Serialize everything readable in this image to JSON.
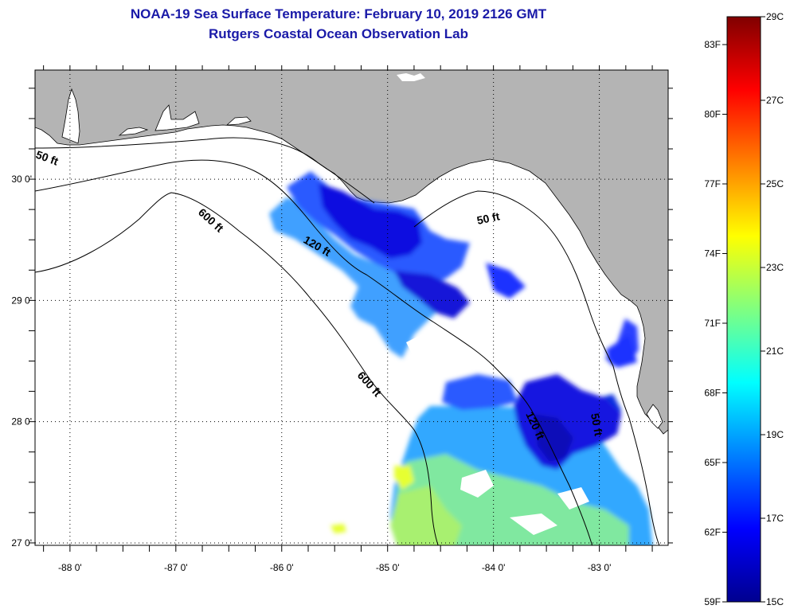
{
  "title": {
    "line1": "NOAA-19 Sea Surface Temperature:  February 10, 2019 2126 GMT",
    "line2": "Rutgers Coastal Ocean Observation Lab"
  },
  "map": {
    "lon_range": [
      -88.33,
      -82.35
    ],
    "lat_range": [
      26.98,
      30.9
    ],
    "lon_ticks": [
      {
        "value": -88,
        "label": "-88 0'"
      },
      {
        "value": -87,
        "label": "-87 0'"
      },
      {
        "value": -86,
        "label": "-86 0'"
      },
      {
        "value": -85,
        "label": "-85 0'"
      },
      {
        "value": -84,
        "label": "-84 0'"
      },
      {
        "value": -83,
        "label": "-83 0'"
      }
    ],
    "lat_ticks": [
      {
        "value": 30,
        "label": "30 0'"
      },
      {
        "value": 29,
        "label": "29 0'"
      },
      {
        "value": 28,
        "label": "28 0'"
      },
      {
        "value": 27,
        "label": "27 0'"
      }
    ],
    "land_color": "#b4b4b4",
    "ocean_color": "#ffffff",
    "grid": "dotted",
    "contours": [
      {
        "depth": "50 ft",
        "label": "50 ft"
      },
      {
        "depth": "120 ft",
        "label": "120 ft"
      },
      {
        "depth": "600 ft",
        "label": "600 ft"
      }
    ]
  },
  "colorbar": {
    "min_c": 15,
    "max_c": 29,
    "celsius_labels": [
      "29C",
      "27C",
      "25C",
      "23C",
      "21C",
      "19C",
      "17C",
      "15C"
    ],
    "fahrenheit_labels": [
      "83F",
      "80F",
      "77F",
      "74F",
      "71F",
      "68F",
      "65F",
      "62F",
      "59F"
    ],
    "colors": [
      "#00008f",
      "#0000ff",
      "#0080ff",
      "#00ffff",
      "#80ff80",
      "#ffff00",
      "#ff8000",
      "#ff0000",
      "#800000"
    ]
  }
}
